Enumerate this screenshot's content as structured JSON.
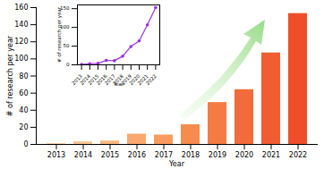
{
  "chart_data": [
    {
      "type": "bar",
      "categories": [
        "2013",
        "2014",
        "2015",
        "2016",
        "2017",
        "2018",
        "2019",
        "2020",
        "2021",
        "2022"
      ],
      "values": [
        1,
        3,
        4,
        12,
        11,
        23,
        49,
        64,
        107,
        153
      ],
      "colors": [
        "#fcd2a6",
        "#fbc592",
        "#fab880",
        "#f9a96d",
        "#f89b5e",
        "#f68b4f",
        "#f47c44",
        "#f26b3a",
        "#f05d31",
        "#ee4f2a"
      ],
      "x_label": "Year",
      "y_label": "# of research per year",
      "ylim": [
        0,
        160
      ],
      "yticks": [
        0,
        20,
        40,
        60,
        80,
        100,
        120,
        140,
        160
      ],
      "grid": false
    },
    {
      "type": "line",
      "x": [
        2013,
        2014,
        2015,
        2016,
        2017,
        2018,
        2019,
        2020,
        2021,
        2022
      ],
      "values": [
        1,
        3,
        4,
        12,
        11,
        23,
        49,
        64,
        107,
        153
      ],
      "color": "#9b30e0",
      "marker": "circle",
      "x_label": "Year",
      "y_label": "# of research per year",
      "xlim": [
        2012.5,
        2022.5
      ],
      "xticks": [
        2013,
        2014,
        2015,
        2016,
        2017,
        2018,
        2019,
        2020,
        2021,
        2022
      ],
      "ylim": [
        0,
        160
      ],
      "yticks": [
        0,
        50,
        100,
        150
      ],
      "grid": false
    }
  ]
}
